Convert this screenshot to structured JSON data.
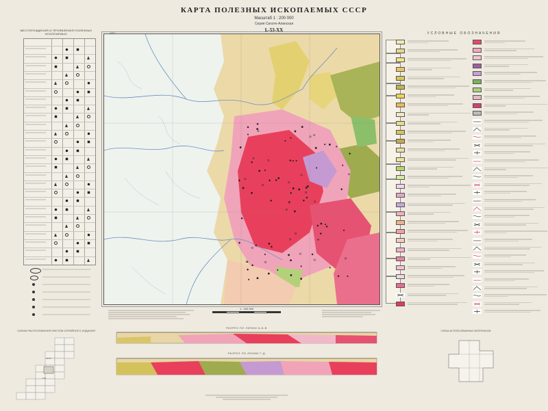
{
  "header": {
    "title": "КАРТА ПОЛЕЗНЫХ ИСКОПАЕМЫХ СССР",
    "scale": "Масштаб 1 : 200 000",
    "series": "Серия Сихоте-Алинская",
    "sheet": "L-53-XX",
    "corner_label": "(96°)"
  },
  "left_panel": {
    "title": "МЕСТОРОЖДЕНИЯ И ПРОЯВЛЕНИЯ ПОЛЕЗНЫХ ИСКОПАЕМЫХ"
  },
  "index_panel": {
    "title": "СХЕМА РАСПОЛОЖЕНИЯ ЛИСТОВ СЕРИЙНОГО ИЗДАНИЯ",
    "sheet_labels": [
      "М-53",
      "L-53"
    ]
  },
  "scale_bar": {
    "label": "1 : 200 000"
  },
  "sections": {
    "section1_title": "РАЗРЕЗ ПО ЛИНИИ А-Б-В",
    "section2_title": "РАЗРЕЗ ПО ЛИНИИ Г-Д"
  },
  "legend": {
    "title": "УСЛОВНЫЕ ОБОЗНАЧЕНИЯ",
    "col1_colors": [
      "#f3e7b3",
      "#e9d58a",
      "#f2e08c",
      "#e3c76a",
      "#d6c55e",
      "#c3b24c",
      "#efd15c",
      "#e8b95a",
      "#f0e8c8",
      "#ead98a",
      "#d9c25c",
      "#c7a84b",
      "#e9e0a2",
      "#f0e0a0",
      "#b8d36c",
      "#d9e9a2",
      "#f1d7e8",
      "#e2a6c8",
      "#c8a6d8",
      "#efb0b8",
      "#e9b58a",
      "#f0a0a8",
      "#f7c9c0",
      "#f1b1c4",
      "#e882a0",
      "#f4c2d2",
      "#f3d6e6",
      "#e86d8c",
      "#ffffff",
      "#e23b5a"
    ],
    "col2_colors": [
      "#e84a6a",
      "#f4a7b9",
      "#f3c2d1",
      "#9e5fa0",
      "#c9a0d6",
      "#7bb25e",
      "#aad17c",
      "#e8b8c8",
      "#d44070",
      "#bbbbbb",
      "#ffffff",
      "#ffffff",
      "#ffffff",
      "#ffffff",
      "#ffffff",
      "#ffffff",
      "#ffffff",
      "#ffffff",
      "#ffffff",
      "#ffffff",
      "#ffffff",
      "#ffffff",
      "#ffffff",
      "#ffffff",
      "#ffffff",
      "#ffffff",
      "#ffffff",
      "#ffffff",
      "#ffffff",
      "#ffffff",
      "#ffffff",
      "#ffffff",
      "#ffffff",
      "#ffffff",
      "#ffffff"
    ]
  },
  "used_materials": {
    "title": "СХЕМА ИСПОЛЬЗОВАННЫХ МАТЕРИАЛОВ"
  },
  "colors": {
    "granite_red": "#e8405c",
    "granite_pink": "#f1a4b8",
    "sediment_tan": "#e8d6a6",
    "sediment_yellow": "#e6d470",
    "olive": "#9aa84a",
    "river_blue": "#6d8dc0"
  }
}
